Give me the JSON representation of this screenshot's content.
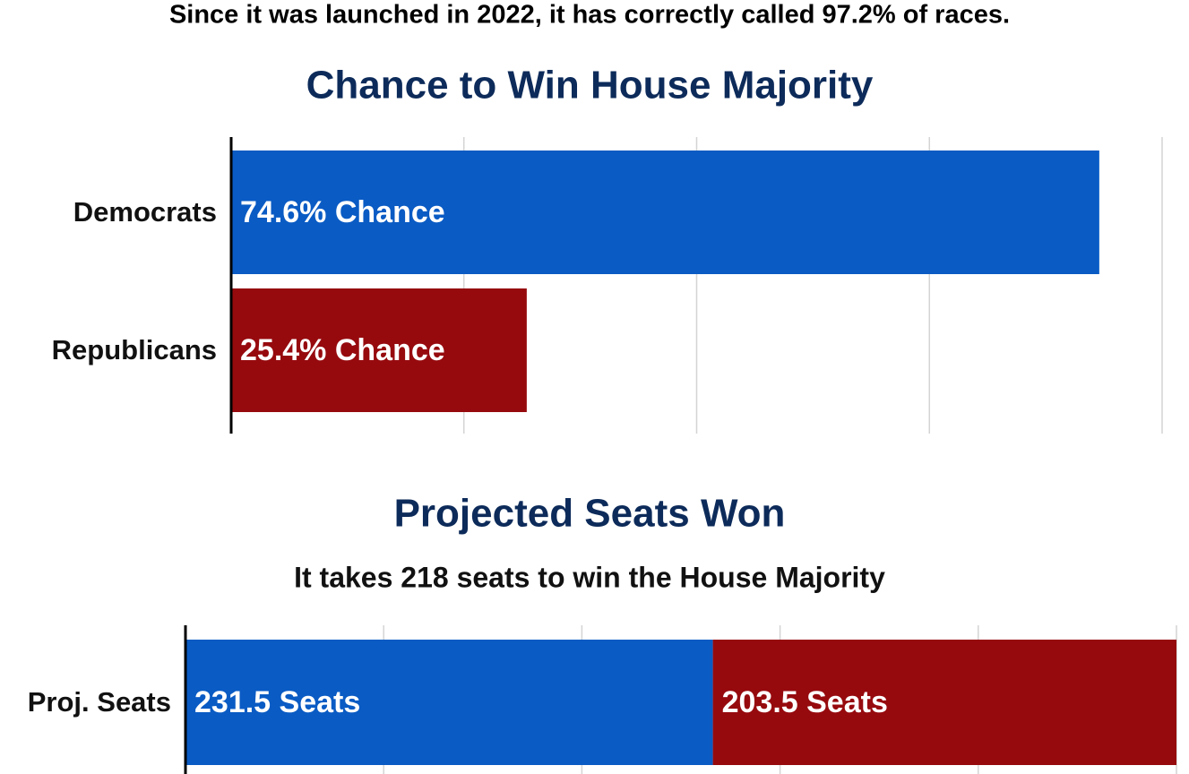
{
  "chart_data": [
    {
      "type": "bar",
      "orientation": "horizontal",
      "annotation": "Since it was launched in 2022, it has correctly called 97.2% of races.",
      "title": "Chance to Win House Majority",
      "categories": [
        "Democrats",
        "Republicans"
      ],
      "values": [
        74.6,
        25.4
      ],
      "value_labels": [
        "74.6% Chance",
        "25.4% Chance"
      ],
      "colors": [
        "#0a5bc4",
        "#960a0e"
      ],
      "xlim": [
        0,
        80
      ],
      "xticks": [
        0,
        20,
        40,
        60,
        80
      ],
      "grid": true
    },
    {
      "type": "bar",
      "orientation": "horizontal",
      "stacked": true,
      "title": "Projected Seats Won",
      "subtitle": "It takes 218 seats to win the House Majority",
      "categories": [
        "Proj. Seats"
      ],
      "series": [
        {
          "color": "#0a5bc4",
          "values": [
            231.5
          ],
          "value_labels": [
            "231.5 Seats"
          ]
        },
        {
          "color": "#960a0e",
          "values": [
            203.5
          ],
          "value_labels": [
            "203.5 Seats"
          ]
        }
      ],
      "xlim": [
        0,
        435
      ],
      "xticks": [
        0,
        87,
        174,
        261,
        348,
        435
      ],
      "grid": true
    }
  ]
}
